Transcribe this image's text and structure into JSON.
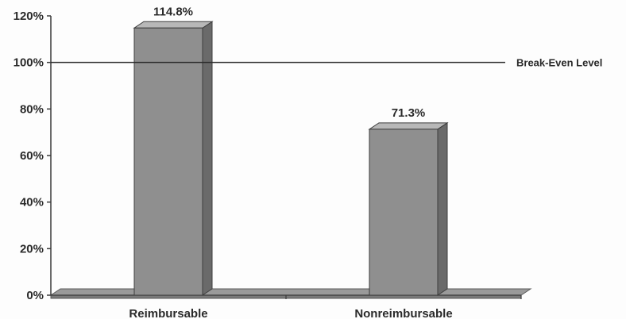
{
  "chart_data": {
    "type": "bar",
    "categories": [
      "Reimbursable",
      "Nonreimbursable"
    ],
    "values": [
      114.8,
      71.3
    ],
    "value_labels": [
      "114.8%",
      "71.3%"
    ],
    "ylim": [
      0,
      120
    ],
    "yticks": [
      0,
      20,
      40,
      60,
      80,
      100,
      120
    ],
    "ytick_labels": [
      "0%",
      "20%",
      "40%",
      "60%",
      "80%",
      "100%",
      "120%"
    ],
    "reference_line": {
      "value": 100,
      "label": "Break-Even Level"
    },
    "style": "3d",
    "grid": false,
    "legend": "none",
    "colors": {
      "bar_front": "#8f8f8f",
      "bar_side": "#6a6a6a",
      "bar_top": "#b8b8b8",
      "floor": "#9a9a9a",
      "axis": "#3a3a3a"
    }
  }
}
